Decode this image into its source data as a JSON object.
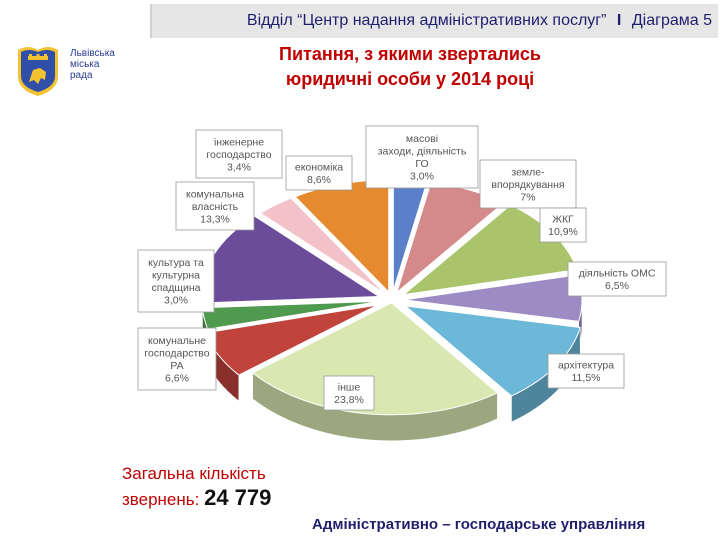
{
  "header": {
    "department": "Відділ “Центр надання адміністративних послуг”",
    "separator": "I",
    "diagram": "Діаграма 5"
  },
  "logo": {
    "lines": [
      "Львівська",
      "міська",
      "рада"
    ],
    "icon": "lviv-coat-of-arms-icon"
  },
  "title": {
    "line1": "Питання, з якими звертались",
    "line2": "юридичні особи у 2014 році"
  },
  "total": {
    "line1": "Загальна кількість",
    "line2_prefix": "звернень: ",
    "value": "24 779"
  },
  "footer": "Адміністративно – господарське управління",
  "chart_data": {
    "type": "pie",
    "title": "Питання, з якими звертались юридичні особи у 2014 році",
    "slices": [
      {
        "label": [
          "масові",
          "заходи, діяльність",
          "ГО"
        ],
        "value": 3.0,
        "value_text": "3,0%",
        "color": "#5b7fc9"
      },
      {
        "label": [
          "земле-",
          "впорядкування"
        ],
        "value": 7.0,
        "value_text": "7%",
        "color": "#d48a8a"
      },
      {
        "label": [
          "ЖКГ"
        ],
        "value": 10.9,
        "value_text": "10,9%",
        "color": "#a9c46a"
      },
      {
        "label": [
          "діяльність ОМС"
        ],
        "value": 6.5,
        "value_text": "6,5%",
        "color": "#9b8cc4"
      },
      {
        "label": [
          "архітектура"
        ],
        "value": 11.5,
        "value_text": "11,5%",
        "color": "#6cb8d8"
      },
      {
        "label": [
          "інше"
        ],
        "value": 23.8,
        "value_text": "23,8%",
        "color": "#d8e8b0"
      },
      {
        "label": [
          "комунальне",
          "господарство",
          "РА"
        ],
        "value": 6.6,
        "value_text": "6,6%",
        "color": "#c0433c"
      },
      {
        "label": [
          "культура та",
          "культурна",
          "спадщина"
        ],
        "value": 3.0,
        "value_text": "3,0%",
        "color": "#4f9a4f"
      },
      {
        "label": [
          "комунальна",
          "власність"
        ],
        "value": 13.3,
        "value_text": "13,3%",
        "color": "#6a4c9a"
      },
      {
        "label": [
          "інженерне",
          "господарство"
        ],
        "value": 3.4,
        "value_text": "3,4%",
        "color": "#f2c2c8"
      },
      {
        "label": [
          "економіка"
        ],
        "value": 8.6,
        "value_text": "8,6%",
        "color": "#e58a2e"
      }
    ]
  }
}
